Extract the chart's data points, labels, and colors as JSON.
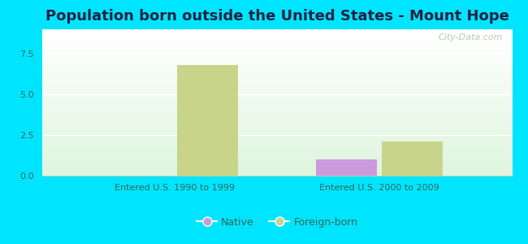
{
  "title": "Population born outside the United States - Mount Hope",
  "groups": [
    "Entered U.S. 1990 to 1999",
    "Entered U.S. 2000 to 2009"
  ],
  "native_values": [
    0,
    1.0
  ],
  "foreign_values": [
    6.8,
    2.1
  ],
  "native_color": "#cc99dd",
  "foreign_color": "#c8d48a",
  "native_label": "Native",
  "foreign_label": "Foreign-born",
  "ylim": [
    0,
    9
  ],
  "yticks": [
    0,
    2.5,
    5,
    7.5
  ],
  "bg_outer": "#00e5ff",
  "watermark": "City-Data.com",
  "bar_width": 0.3,
  "title_color": "#222244",
  "tick_color": "#336655",
  "grid_color": "#ddeecc"
}
